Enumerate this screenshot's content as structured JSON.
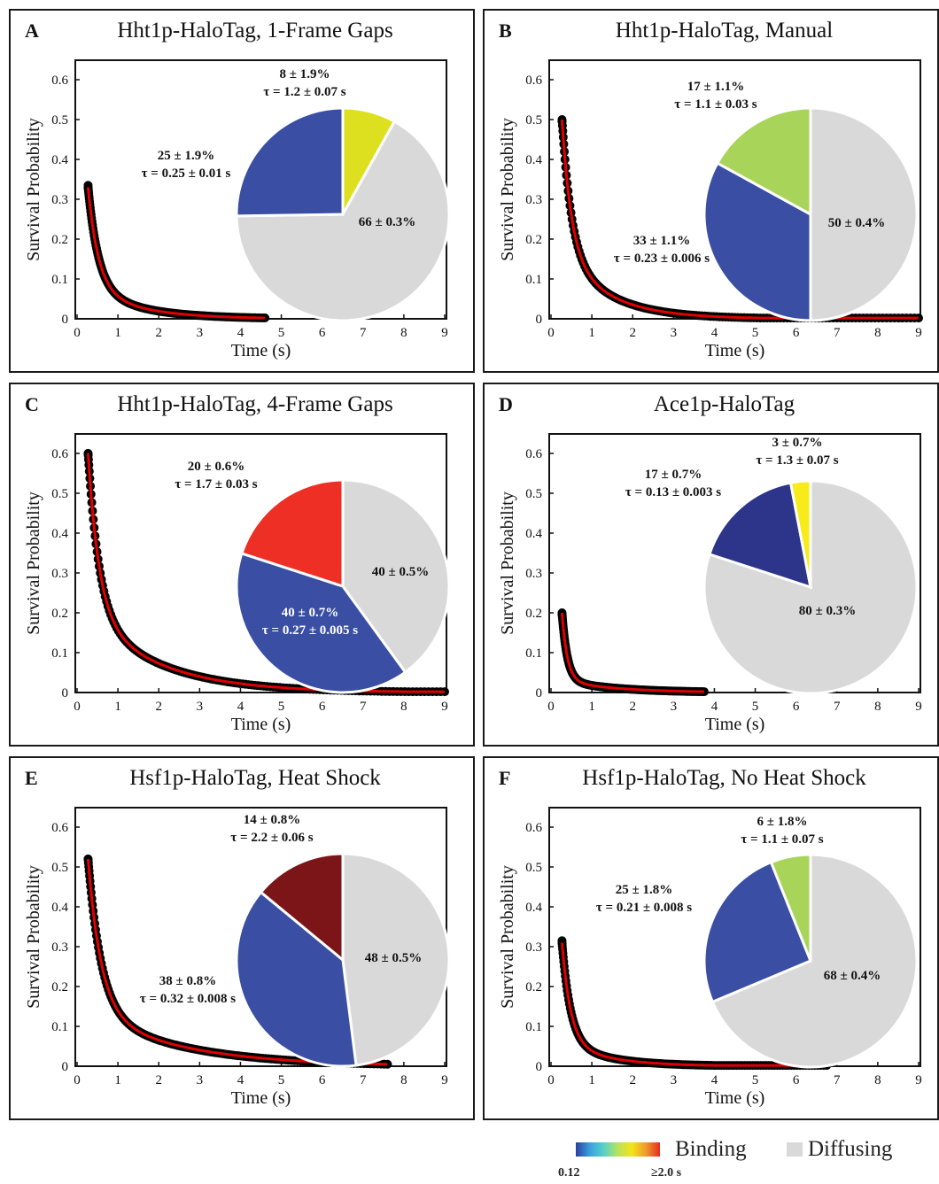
{
  "legend": {
    "binding_label": "Binding",
    "diffusing_label": "Diffusing",
    "scale_min": "0.12",
    "scale_max": "≥2.0 s",
    "gradient_colors": [
      "#2b3f9e",
      "#3aa0e0",
      "#56d2c8",
      "#b9e25a",
      "#f3e41a",
      "#f09a2a",
      "#e62a20"
    ],
    "diffusing_color": "#d9d9d9"
  },
  "colors": {
    "data_points": "#000000",
    "fit_curve": "#e00000"
  },
  "chart_data": [
    {
      "panel": "A",
      "type": "scatter",
      "title": "Hht1p-HaloTag, 1-Frame Gaps",
      "xlabel": "Time (s)",
      "ylabel": "Survival Probability",
      "xlim": [
        0,
        9
      ],
      "ylim": [
        0,
        0.6
      ],
      "xticks": [
        "0",
        "1",
        "2",
        "3",
        "4",
        "5",
        "6",
        "7",
        "8",
        "9"
      ],
      "yticks": [
        "0",
        "0.1",
        "0.2",
        "0.3",
        "0.4",
        "0.5",
        "0.6"
      ],
      "survival": {
        "x_start": 0.27,
        "x_end": 4.6,
        "y_start": 0.335,
        "components": [
          {
            "a": 0.25,
            "tau": 0.25
          },
          {
            "a": 0.08,
            "tau": 1.2
          }
        ]
      },
      "pie": [
        {
          "label": "8 ± 1.9%",
          "sublabel": "τ = 1.2 ± 0.07 s",
          "value": 8,
          "color": "#dde01e"
        },
        {
          "label": "66 ± 0.3%",
          "sublabel": "",
          "value": 66,
          "color": "#d9d9d9"
        },
        {
          "label": "25 ± 1.9%",
          "sublabel": "τ = 0.25 ± 0.01 s",
          "value": 25,
          "color": "#3a4fa3"
        }
      ]
    },
    {
      "panel": "B",
      "type": "scatter",
      "title": "Hht1p-HaloTag, Manual",
      "xlabel": "Time (s)",
      "ylabel": "Survival Probability",
      "xlim": [
        0,
        9
      ],
      "ylim": [
        0,
        0.6
      ],
      "xticks": [
        "0",
        "1",
        "2",
        "3",
        "4",
        "5",
        "6",
        "7",
        "8",
        "9"
      ],
      "yticks": [
        "0",
        "0.1",
        "0.2",
        "0.3",
        "0.4",
        "0.5",
        "0.6"
      ],
      "survival": {
        "x_start": 0.27,
        "x_end": 9.0,
        "y_start": 0.495,
        "components": [
          {
            "a": 0.33,
            "tau": 0.23
          },
          {
            "a": 0.17,
            "tau": 1.1
          }
        ]
      },
      "pie": [
        {
          "label": "50 ± 0.4%",
          "sublabel": "",
          "value": 50,
          "color": "#d9d9d9"
        },
        {
          "label": "33 ± 1.1%",
          "sublabel": "τ = 0.23 ± 0.006 s",
          "value": 33,
          "color": "#3a4fa3"
        },
        {
          "label": "17 ± 1.1%",
          "sublabel": "τ = 1.1 ± 0.03 s",
          "value": 17,
          "color": "#a9d45a"
        }
      ]
    },
    {
      "panel": "C",
      "type": "scatter",
      "title": "Hht1p-HaloTag, 4-Frame Gaps",
      "xlabel": "Time (s)",
      "ylabel": "Survival Probability",
      "xlim": [
        0,
        9
      ],
      "ylim": [
        0,
        0.6
      ],
      "xticks": [
        "0",
        "1",
        "2",
        "3",
        "4",
        "5",
        "6",
        "7",
        "8",
        "9"
      ],
      "yticks": [
        "0",
        "0.1",
        "0.2",
        "0.3",
        "0.4",
        "0.5",
        "0.6"
      ],
      "survival": {
        "x_start": 0.27,
        "x_end": 9.0,
        "y_start": 0.6,
        "components": [
          {
            "a": 0.4,
            "tau": 0.27
          },
          {
            "a": 0.2,
            "tau": 1.7
          }
        ]
      },
      "pie": [
        {
          "label": "40 ± 0.5%",
          "sublabel": "",
          "value": 40,
          "color": "#d9d9d9"
        },
        {
          "label": "40 ± 0.7%",
          "sublabel": "τ = 0.27 ± 0.005 s",
          "value": 40,
          "color": "#3a4fa3"
        },
        {
          "label": "20 ± 0.6%",
          "sublabel": "τ = 1.7 ± 0.03 s",
          "value": 20,
          "color": "#ee2f25"
        }
      ]
    },
    {
      "panel": "D",
      "type": "scatter",
      "title": "Ace1p-HaloTag",
      "xlabel": "Time (s)",
      "ylabel": "Survival Probability",
      "xlim": [
        0,
        9
      ],
      "ylim": [
        0,
        0.6
      ],
      "xticks": [
        "0",
        "1",
        "2",
        "3",
        "4",
        "5",
        "6",
        "7",
        "8",
        "9"
      ],
      "yticks": [
        "0",
        "0.1",
        "0.2",
        "0.3",
        "0.4",
        "0.5",
        "0.6"
      ],
      "survival": {
        "x_start": 0.27,
        "x_end": 3.75,
        "y_start": 0.195,
        "components": [
          {
            "a": 0.17,
            "tau": 0.13
          },
          {
            "a": 0.03,
            "tau": 1.3
          }
        ]
      },
      "pie": [
        {
          "label": "80 ± 0.3%",
          "sublabel": "",
          "value": 80,
          "color": "#d9d9d9"
        },
        {
          "label": "17 ± 0.7%",
          "sublabel": "τ = 0.13 ± 0.003 s",
          "value": 17,
          "color": "#2c3589"
        },
        {
          "label": "3 ± 0.7%",
          "sublabel": "τ = 1.3 ± 0.07 s",
          "value": 3,
          "color": "#f7ec1a"
        }
      ]
    },
    {
      "panel": "E",
      "type": "scatter",
      "title": "Hsf1p-HaloTag, Heat Shock",
      "xlabel": "Time (s)",
      "ylabel": "Survival Probability",
      "xlim": [
        0,
        9
      ],
      "ylim": [
        0,
        0.6
      ],
      "xticks": [
        "0",
        "1",
        "2",
        "3",
        "4",
        "5",
        "6",
        "7",
        "8",
        "9"
      ],
      "yticks": [
        "0",
        "0.1",
        "0.2",
        "0.3",
        "0.4",
        "0.5",
        "0.6"
      ],
      "survival": {
        "x_start": 0.27,
        "x_end": 7.6,
        "y_start": 0.52,
        "components": [
          {
            "a": 0.38,
            "tau": 0.32
          },
          {
            "a": 0.14,
            "tau": 2.2
          }
        ]
      },
      "pie": [
        {
          "label": "48 ± 0.5%",
          "sublabel": "",
          "value": 48,
          "color": "#d9d9d9"
        },
        {
          "label": "38 ± 0.8%",
          "sublabel": "τ = 0.32 ± 0.008 s",
          "value": 38,
          "color": "#3a4fa3"
        },
        {
          "label": "14 ± 0.8%",
          "sublabel": "τ = 2.2 ± 0.06 s",
          "value": 14,
          "color": "#7c1517"
        }
      ]
    },
    {
      "panel": "F",
      "type": "scatter",
      "title": "Hsf1p-HaloTag, No Heat Shock",
      "xlabel": "Time (s)",
      "ylabel": "Survival Probability",
      "xlim": [
        0,
        9
      ],
      "ylim": [
        0,
        0.6
      ],
      "xticks": [
        "0",
        "1",
        "2",
        "3",
        "4",
        "5",
        "6",
        "7",
        "8",
        "9"
      ],
      "yticks": [
        "0",
        "0.1",
        "0.2",
        "0.3",
        "0.4",
        "0.5",
        "0.6"
      ],
      "survival": {
        "x_start": 0.27,
        "x_end": 6.75,
        "y_start": 0.315,
        "components": [
          {
            "a": 0.25,
            "tau": 0.21
          },
          {
            "a": 0.06,
            "tau": 1.1
          }
        ]
      },
      "pie": [
        {
          "label": "68 ± 0.4%",
          "sublabel": "",
          "value": 68,
          "color": "#d9d9d9"
        },
        {
          "label": "25 ± 1.8%",
          "sublabel": "τ = 0.21 ± 0.008 s",
          "value": 25,
          "color": "#3a4fa3"
        },
        {
          "label": "6 ± 1.8%",
          "sublabel": "τ = 1.1 ± 0.07 s",
          "value": 6,
          "color": "#a9d45a"
        }
      ]
    }
  ]
}
